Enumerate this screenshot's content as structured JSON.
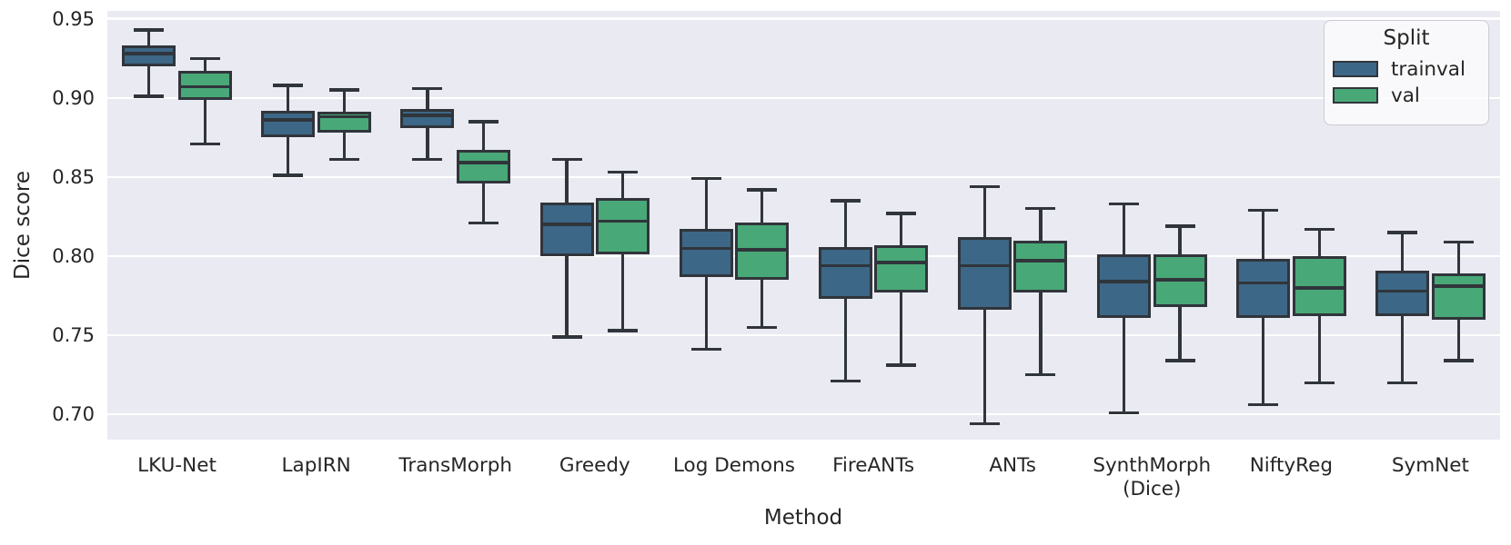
{
  "colors": {
    "plot_background": "#eaeaf2",
    "grid": "#ffffff",
    "box_edge": "#30353b",
    "text": "#262626",
    "trainval": "#3d6786",
    "val": "#49a878"
  },
  "chart_data": {
    "type": "box",
    "title": "",
    "xlabel": "Method",
    "ylabel": "Dice score",
    "ylim": [
      0.684,
      0.955
    ],
    "yticks": [
      0.7,
      0.75,
      0.8,
      0.85,
      0.9,
      0.95
    ],
    "grid": true,
    "legend": {
      "title": "Split",
      "position": "upper right"
    },
    "categories": [
      "LKU-Net",
      "LapIRN",
      "TransMorph",
      "Greedy",
      "Log Demons",
      "FireANTs",
      "ANTs",
      "SynthMorph\n(Dice)",
      "NiftyReg",
      "SymNet"
    ],
    "series": [
      {
        "name": "trainval",
        "color": "#3d6786",
        "boxes": [
          {
            "whislo": 0.901,
            "q1": 0.92,
            "med": 0.928,
            "q3": 0.933,
            "whishi": 0.943
          },
          {
            "whislo": 0.851,
            "q1": 0.875,
            "med": 0.886,
            "q3": 0.892,
            "whishi": 0.908
          },
          {
            "whislo": 0.861,
            "q1": 0.881,
            "med": 0.889,
            "q3": 0.893,
            "whishi": 0.906
          },
          {
            "whislo": 0.749,
            "q1": 0.8,
            "med": 0.82,
            "q3": 0.834,
            "whishi": 0.861
          },
          {
            "whislo": 0.741,
            "q1": 0.787,
            "med": 0.805,
            "q3": 0.817,
            "whishi": 0.849
          },
          {
            "whislo": 0.721,
            "q1": 0.773,
            "med": 0.794,
            "q3": 0.806,
            "whishi": 0.835
          },
          {
            "whislo": 0.694,
            "q1": 0.766,
            "med": 0.794,
            "q3": 0.812,
            "whishi": 0.844
          },
          {
            "whislo": 0.701,
            "q1": 0.761,
            "med": 0.784,
            "q3": 0.801,
            "whishi": 0.833
          },
          {
            "whislo": 0.706,
            "q1": 0.761,
            "med": 0.783,
            "q3": 0.798,
            "whishi": 0.829
          },
          {
            "whislo": 0.72,
            "q1": 0.762,
            "med": 0.778,
            "q3": 0.791,
            "whishi": 0.815
          }
        ]
      },
      {
        "name": "val",
        "color": "#49a878",
        "boxes": [
          {
            "whislo": 0.871,
            "q1": 0.899,
            "med": 0.907,
            "q3": 0.917,
            "whishi": 0.925
          },
          {
            "whislo": 0.861,
            "q1": 0.878,
            "med": 0.888,
            "q3": 0.891,
            "whishi": 0.905
          },
          {
            "whislo": 0.821,
            "q1": 0.846,
            "med": 0.859,
            "q3": 0.867,
            "whishi": 0.885
          },
          {
            "whislo": 0.753,
            "q1": 0.801,
            "med": 0.822,
            "q3": 0.837,
            "whishi": 0.853
          },
          {
            "whislo": 0.755,
            "q1": 0.785,
            "med": 0.804,
            "q3": 0.821,
            "whishi": 0.842
          },
          {
            "whislo": 0.731,
            "q1": 0.777,
            "med": 0.796,
            "q3": 0.807,
            "whishi": 0.827
          },
          {
            "whislo": 0.725,
            "q1": 0.777,
            "med": 0.797,
            "q3": 0.81,
            "whishi": 0.83
          },
          {
            "whislo": 0.734,
            "q1": 0.768,
            "med": 0.785,
            "q3": 0.801,
            "whishi": 0.819
          },
          {
            "whislo": 0.72,
            "q1": 0.762,
            "med": 0.78,
            "q3": 0.8,
            "whishi": 0.817
          },
          {
            "whislo": 0.734,
            "q1": 0.76,
            "med": 0.781,
            "q3": 0.789,
            "whishi": 0.809
          }
        ]
      }
    ]
  }
}
